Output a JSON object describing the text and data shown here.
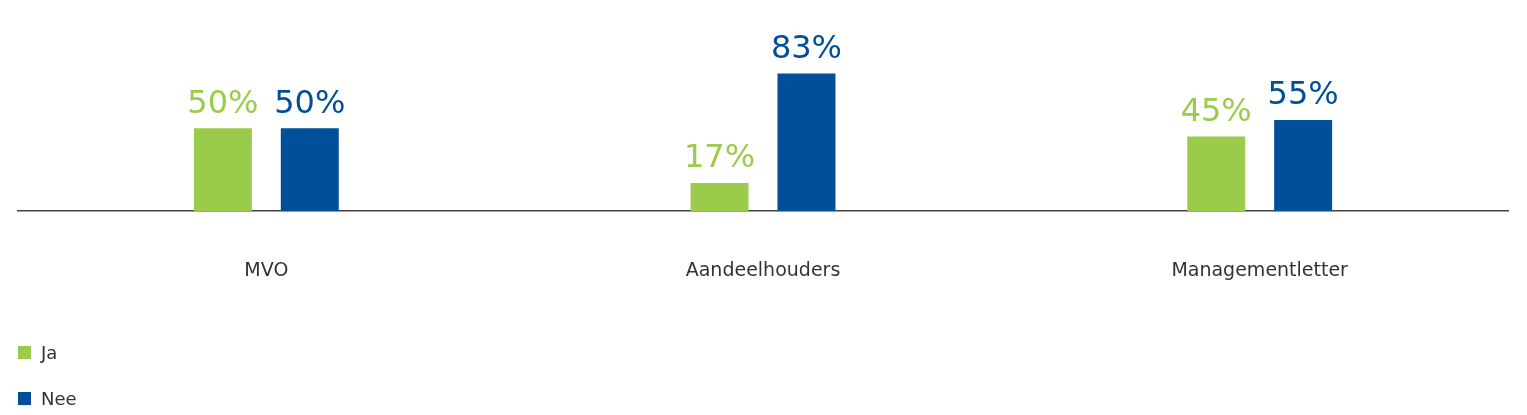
{
  "chart_data": {
    "type": "bar",
    "categories": [
      "MVO",
      "Aandeelhouders",
      "Managementletter"
    ],
    "series": [
      {
        "name": "Ja",
        "color": "#9bcb4b",
        "values": [
          50,
          17,
          45
        ],
        "value_labels": [
          "50%",
          "17%",
          "45%"
        ]
      },
      {
        "name": "Nee",
        "color": "#004f98",
        "values": [
          50,
          83,
          55
        ],
        "value_labels": [
          "50%",
          "83%",
          "55%"
        ]
      }
    ],
    "grid": false,
    "legend": "bottom left"
  }
}
